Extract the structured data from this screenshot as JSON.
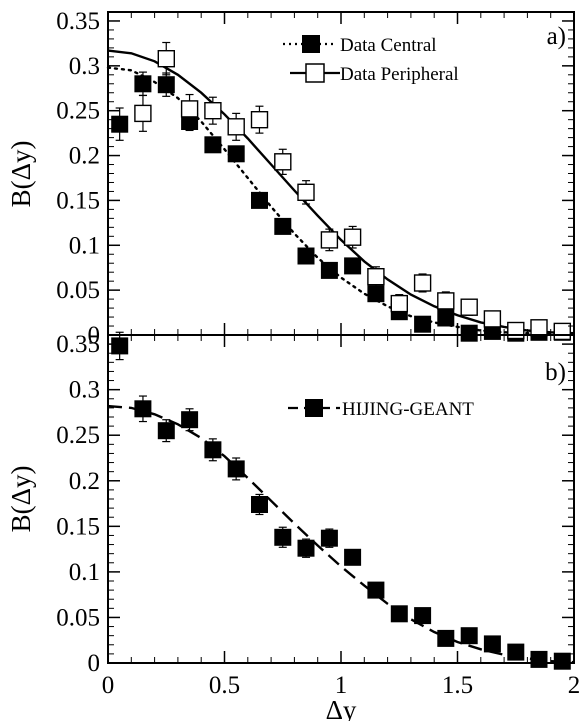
{
  "chart_data": [
    {
      "type": "scatter",
      "panel_label": "a)",
      "xlabel": "",
      "ylabel": "B(Δy)",
      "xlim": [
        0,
        2
      ],
      "ylim": [
        0,
        0.36
      ],
      "yticks": [
        "0",
        "0.05",
        "0.1",
        "0.15",
        "0.2",
        "0.25",
        "0.3",
        "0.35"
      ],
      "legend_position": "top-right",
      "series": [
        {
          "name": "Data Central",
          "marker": "filled-square",
          "x": [
            0.05,
            0.15,
            0.25,
            0.35,
            0.45,
            0.55,
            0.65,
            0.75,
            0.85,
            0.95,
            1.05,
            1.15,
            1.25,
            1.35,
            1.45,
            1.55,
            1.65,
            1.75,
            1.85,
            1.95
          ],
          "y": [
            0.235,
            0.28,
            0.279,
            0.238,
            0.212,
            0.202,
            0.15,
            0.121,
            0.088,
            0.072,
            0.077,
            0.046,
            0.026,
            0.012,
            0.019,
            0.002,
            0.004,
            0.002,
            0.003,
            0.003
          ],
          "err": [
            0.018,
            0.013,
            0.013,
            0.01,
            0.008,
            0.008,
            0.007,
            0.007,
            0.006,
            0.006,
            0.006,
            0.005,
            0.005,
            0.004,
            0.004,
            0.003,
            0.003,
            0.003,
            0.003,
            0.003
          ]
        },
        {
          "name": "Data Peripheral",
          "marker": "open-square",
          "x": [
            0.15,
            0.25,
            0.35,
            0.45,
            0.55,
            0.65,
            0.75,
            0.85,
            0.95,
            1.05,
            1.15,
            1.25,
            1.35,
            1.45,
            1.55,
            1.65,
            1.75,
            1.85,
            1.95
          ],
          "y": [
            0.247,
            0.308,
            0.252,
            0.25,
            0.232,
            0.24,
            0.193,
            0.159,
            0.106,
            0.109,
            0.065,
            0.035,
            0.058,
            0.038,
            0.031,
            0.018,
            0.005,
            0.008,
            0.004
          ],
          "err": [
            0.02,
            0.018,
            0.016,
            0.015,
            0.015,
            0.015,
            0.014,
            0.013,
            0.012,
            0.012,
            0.011,
            0.01,
            0.01,
            0.01,
            0.009,
            0.008,
            0.006,
            0.006,
            0.005
          ]
        },
        {
          "name": "",
          "style": "dotted-fit",
          "x": [
            0,
            0.1,
            0.2,
            0.3,
            0.4,
            0.5,
            0.6,
            0.7,
            0.8,
            0.9,
            1.0,
            1.1,
            1.2,
            1.3,
            1.4,
            1.5,
            1.6,
            1.7,
            1.8,
            1.9,
            2.0
          ],
          "y": [
            0.298,
            0.295,
            0.282,
            0.264,
            0.238,
            0.207,
            0.175,
            0.143,
            0.113,
            0.086,
            0.064,
            0.046,
            0.032,
            0.021,
            0.014,
            0.009,
            0.005,
            0.003,
            0.002,
            0.001,
            0.0005
          ]
        },
        {
          "name": "",
          "style": "solid-fit",
          "x": [
            0,
            0.1,
            0.2,
            0.3,
            0.4,
            0.5,
            0.6,
            0.7,
            0.8,
            0.9,
            1.0,
            1.1,
            1.2,
            1.3,
            1.4,
            1.5,
            1.6,
            1.7,
            1.8,
            1.9,
            2.0
          ],
          "y": [
            0.317,
            0.314,
            0.305,
            0.29,
            0.27,
            0.246,
            0.219,
            0.19,
            0.161,
            0.133,
            0.106,
            0.082,
            0.062,
            0.045,
            0.032,
            0.022,
            0.014,
            0.009,
            0.005,
            0.003,
            0.002
          ]
        }
      ]
    },
    {
      "type": "scatter",
      "panel_label": "b)",
      "xlabel": "Δy",
      "ylabel": "B(Δy)",
      "xlim": [
        0,
        2
      ],
      "ylim": [
        0,
        0.36
      ],
      "xticks": [
        "0",
        "0.5",
        "1",
        "1.5",
        "2"
      ],
      "yticks": [
        "0",
        "0.05",
        "0.1",
        "0.15",
        "0.2",
        "0.25",
        "0.3",
        "0.35"
      ],
      "legend_position": "top-right",
      "series": [
        {
          "name": "HIJING-GEANT",
          "marker": "filled-square",
          "x": [
            0.05,
            0.15,
            0.25,
            0.35,
            0.45,
            0.55,
            0.65,
            0.75,
            0.85,
            0.95,
            1.05,
            1.15,
            1.25,
            1.35,
            1.45,
            1.55,
            1.65,
            1.75,
            1.85,
            1.95
          ],
          "y": [
            0.348,
            0.279,
            0.255,
            0.267,
            0.234,
            0.213,
            0.174,
            0.138,
            0.126,
            0.137,
            0.116,
            0.08,
            0.054,
            0.052,
            0.027,
            0.03,
            0.021,
            0.012,
            0.004,
            0.002
          ],
          "err": [
            0.015,
            0.014,
            0.012,
            0.012,
            0.012,
            0.012,
            0.011,
            0.011,
            0.01,
            0.01,
            0.008,
            0.007,
            0.006,
            0.005,
            0.005,
            0.004,
            0.004,
            0.003,
            0.003,
            0.003
          ]
        },
        {
          "name": "",
          "style": "dashed-fit",
          "x": [
            0,
            0.1,
            0.2,
            0.3,
            0.4,
            0.5,
            0.6,
            0.7,
            0.8,
            0.9,
            1.0,
            1.1,
            1.2,
            1.3,
            1.4,
            1.5,
            1.6,
            1.7,
            1.8,
            1.9,
            2.0
          ],
          "y": [
            0.282,
            0.28,
            0.273,
            0.262,
            0.247,
            0.227,
            0.203,
            0.178,
            0.153,
            0.129,
            0.106,
            0.085,
            0.065,
            0.048,
            0.034,
            0.023,
            0.015,
            0.009,
            0.005,
            0.002,
            0.001
          ]
        }
      ]
    }
  ]
}
